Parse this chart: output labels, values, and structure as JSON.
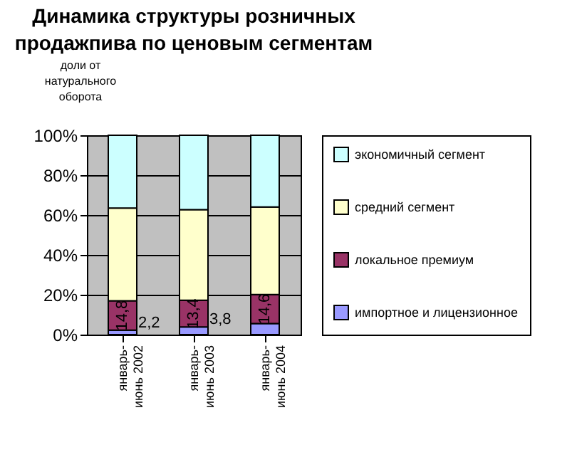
{
  "chart_data": {
    "type": "bar",
    "stacked": true,
    "title": "Динамика структуры розничных продажпива по ценовым сегментам",
    "ylabel": "доли от натурального оборота",
    "categories": [
      "январь-июнь 2002",
      "январь-июнь 2003",
      "январь-июнь 2004"
    ],
    "series": [
      {
        "name": "импортное и лицензионное",
        "color": "#9999ff",
        "values": [
          2.2,
          3.8,
          5.5
        ],
        "value_labels": [
          "2,2",
          "3,8",
          null
        ]
      },
      {
        "name": "локальное премиум",
        "color": "#993366",
        "values": [
          14.8,
          13.4,
          14.6
        ],
        "value_labels": [
          "14,8",
          "13,4",
          "14,6"
        ]
      },
      {
        "name": "средний сегмент",
        "color": "#ffffcc",
        "values": [
          46.5,
          45.5,
          43.9
        ]
      },
      {
        "name": "экономичный сегмент",
        "color": "#ccffff",
        "values": [
          36.5,
          37.3,
          36
        ]
      }
    ],
    "ylim": [
      0,
      100
    ],
    "yticks": [
      {
        "value": 0,
        "label": "0%"
      },
      {
        "value": 20,
        "label": "20%"
      },
      {
        "value": 40,
        "label": "40%"
      },
      {
        "value": 60,
        "label": "60%"
      },
      {
        "value": 80,
        "label": "80%"
      },
      {
        "value": 100,
        "label": "100%"
      }
    ],
    "grid": "y",
    "legend": "right"
  }
}
